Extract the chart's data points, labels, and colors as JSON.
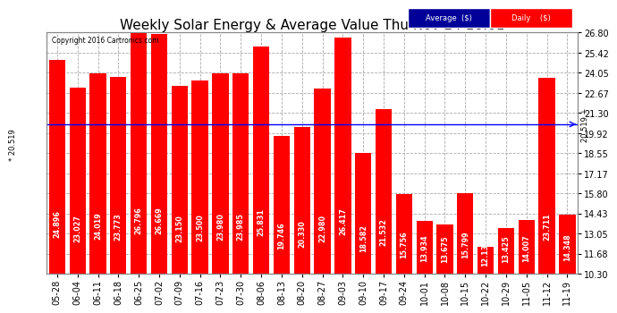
{
  "title": "Weekly Solar Energy & Average Value Thu Nov 24 16:01",
  "copyright": "Copyright 2016 Cartronics.com",
  "categories": [
    "05-28",
    "06-04",
    "06-11",
    "06-18",
    "06-25",
    "07-02",
    "07-09",
    "07-16",
    "07-23",
    "07-30",
    "08-06",
    "08-13",
    "08-20",
    "08-27",
    "09-03",
    "09-10",
    "09-17",
    "09-24",
    "10-01",
    "10-08",
    "10-15",
    "10-22",
    "10-29",
    "11-05",
    "11-12",
    "11-19"
  ],
  "values": [
    24.896,
    23.027,
    24.019,
    23.773,
    26.796,
    26.669,
    23.15,
    23.5,
    23.98,
    23.985,
    25.831,
    19.746,
    20.33,
    22.98,
    26.417,
    18.582,
    21.532,
    15.756,
    13.934,
    13.675,
    15.799,
    12.135,
    13.425,
    14.007,
    23.711,
    14.348
  ],
  "average_value": 20.519,
  "bar_color": "#ff0000",
  "avg_line_color": "#0000ff",
  "background_color": "#ffffff",
  "grid_color": "#aaaaaa",
  "ylim_min": 10.3,
  "ylim_max": 26.8,
  "yticks": [
    10.3,
    11.68,
    13.05,
    14.43,
    15.8,
    17.17,
    18.55,
    19.92,
    21.3,
    22.67,
    24.05,
    25.42,
    26.8
  ],
  "title_fontsize": 11,
  "tick_fontsize": 7,
  "bar_label_fontsize": 5.8,
  "avg_label": "20.519",
  "legend_avg_color": "#000099",
  "legend_daily_color": "#ff0000"
}
